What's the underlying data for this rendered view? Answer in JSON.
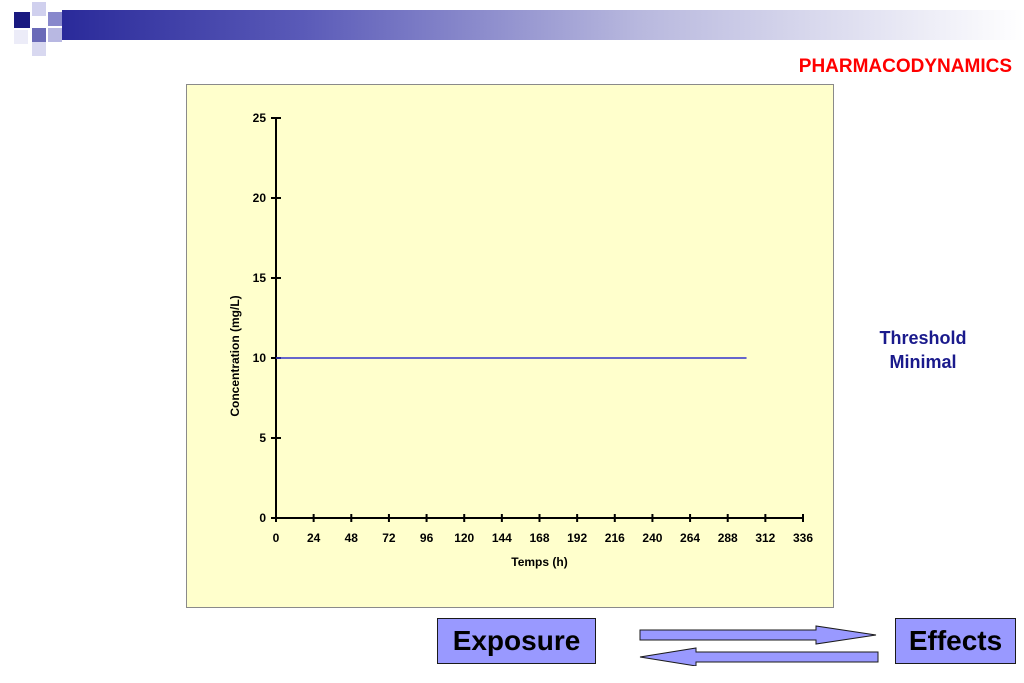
{
  "slide": {
    "title": "PHARMACODYNAMICS",
    "threshold_line1": "Threshold",
    "threshold_line2": "Minimal",
    "exposure_label": "Exposure",
    "effects_label": "Effects"
  },
  "colors": {
    "title": "#ff0000",
    "chart_background": "#ffffcc",
    "threshold_line": "#3333cc",
    "threshold_text": "#1a1a8c",
    "box_fill": "#9999ff"
  },
  "chart_data": {
    "type": "line",
    "xlabel": "Temps (h)",
    "ylabel": "Concentration (mg/L)",
    "xlim": [
      0,
      336
    ],
    "ylim": [
      0,
      25
    ],
    "x_ticks": [
      0,
      24,
      48,
      72,
      96,
      120,
      144,
      168,
      192,
      216,
      240,
      264,
      288,
      312,
      336
    ],
    "y_ticks": [
      0,
      5,
      10,
      15,
      20,
      25
    ],
    "series": [
      {
        "x": [
          0,
          300
        ],
        "y": [
          10,
          10
        ]
      }
    ],
    "grid": false
  }
}
